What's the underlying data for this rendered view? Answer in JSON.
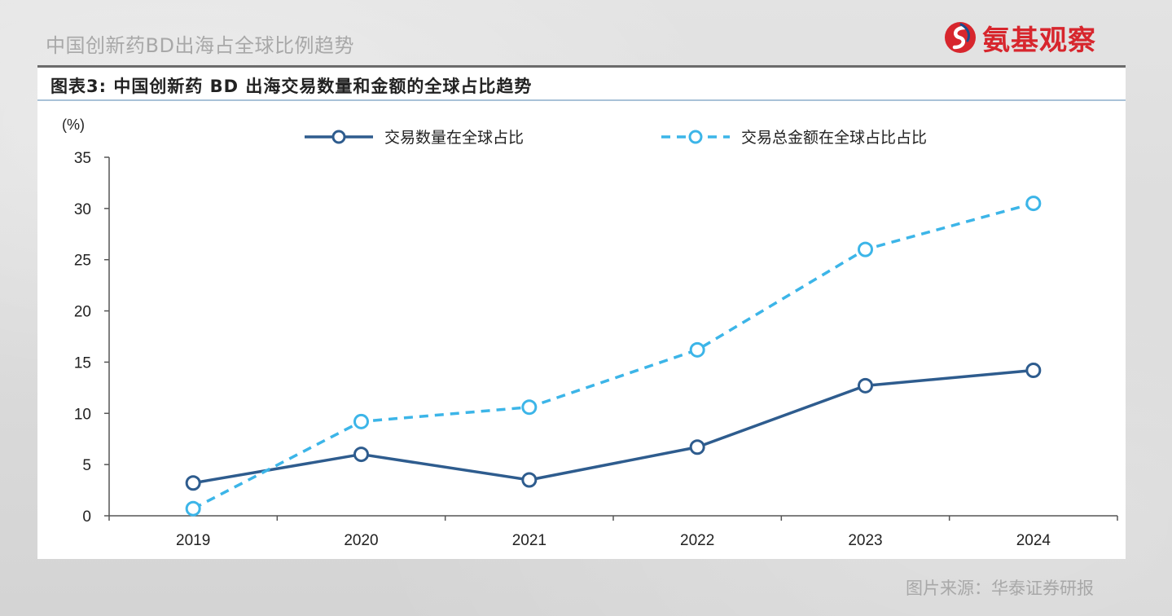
{
  "page_title": "中国创新药BD出海占全球比例趋势",
  "logo": {
    "text": "氨基观察",
    "icon": "logo-mark-icon",
    "color": "#d7262d"
  },
  "figure_title": "图表3:  中国创新药 BD 出海交易数量和金额的全球占比趋势",
  "source": "图片来源：华泰证券研报",
  "chart_data": {
    "type": "line",
    "title": "",
    "ylabel": "(%)",
    "xlabel": "",
    "ylim": [
      0,
      35
    ],
    "yticks": [
      0,
      5,
      10,
      15,
      20,
      25,
      30,
      35
    ],
    "categories": [
      "2019",
      "2020",
      "2021",
      "2022",
      "2023",
      "2024"
    ],
    "legend_position": "top",
    "grid": false,
    "series": [
      {
        "name": "交易数量在全球占比",
        "values": [
          3.2,
          6.0,
          3.5,
          6.7,
          12.7,
          14.2
        ],
        "color": "#2e5c8e",
        "style": "solid"
      },
      {
        "name": "交易总金额在全球占比占比",
        "values": [
          0.7,
          9.2,
          10.6,
          16.2,
          26.0,
          30.5
        ],
        "color": "#3cb5e8",
        "style": "dashed"
      }
    ]
  }
}
